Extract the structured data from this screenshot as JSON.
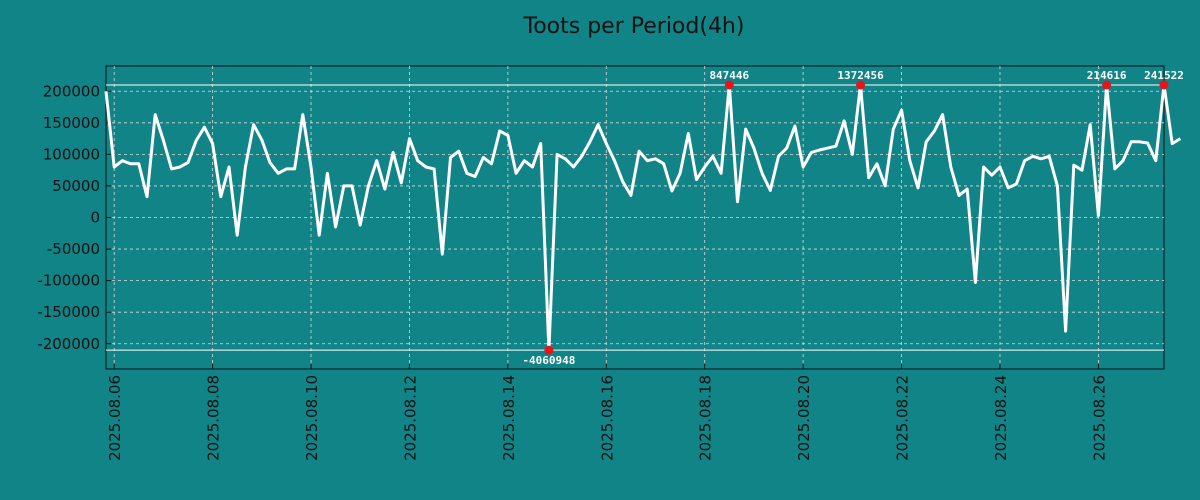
{
  "chart_data": {
    "type": "line",
    "title": "Toots per Period(4h)",
    "xlabel": "",
    "ylabel": "",
    "colors": {
      "background": "#118487",
      "line": "#ffffff",
      "marker": "#e8141a",
      "grid": "#dcdcdc",
      "text": "#111111"
    },
    "x_start": "2025.08.05 20:00",
    "x_step_hours": 4,
    "xlim": [
      0,
      129
    ],
    "ylim": [
      -240000,
      240000
    ],
    "y_ticks": [
      200000,
      150000,
      100000,
      50000,
      0,
      -50000,
      -100000,
      -150000,
      -200000
    ],
    "x_ticks": [
      {
        "label": "2025.08.06",
        "x": 1
      },
      {
        "label": "2025.08.08",
        "x": 13
      },
      {
        "label": "2025.08.10",
        "x": 25
      },
      {
        "label": "2025.08.12",
        "x": 37
      },
      {
        "label": "2025.08.14",
        "x": 49
      },
      {
        "label": "2025.08.16",
        "x": 61
      },
      {
        "label": "2025.08.18",
        "x": 73
      },
      {
        "label": "2025.08.20",
        "x": 85
      },
      {
        "label": "2025.08.22",
        "x": 97
      },
      {
        "label": "2025.08.24",
        "x": 109
      },
      {
        "label": "2025.08.26",
        "x": 121
      }
    ],
    "clip_lines": [
      210000,
      -210000
    ],
    "values": [
      200000,
      80000,
      90000,
      85000,
      85000,
      33000,
      163000,
      122000,
      77000,
      80000,
      87000,
      122000,
      143000,
      117000,
      33000,
      80000,
      -28000,
      80000,
      147000,
      123000,
      87000,
      70000,
      77000,
      77000,
      163000,
      80000,
      -28000,
      70000,
      -15000,
      50000,
      50000,
      -12000,
      50000,
      90000,
      45000,
      103000,
      55000,
      125000,
      90000,
      80000,
      77000,
      -58000,
      95000,
      105000,
      70000,
      65000,
      95000,
      85000,
      137000,
      130000,
      70000,
      90000,
      80000,
      117000,
      -210000,
      100000,
      93000,
      80000,
      97000,
      120000,
      147000,
      117000,
      90000,
      57000,
      35000,
      105000,
      90000,
      93000,
      85000,
      42000,
      70000,
      133000,
      60000,
      80000,
      97000,
      70000,
      210000,
      25000,
      140000,
      110000,
      70000,
      43000,
      97000,
      110000,
      145000,
      80000,
      103000,
      107000,
      110000,
      113000,
      153000,
      100000,
      210000,
      63000,
      85000,
      50000,
      140000,
      170000,
      90000,
      47000,
      120000,
      137000,
      163000,
      80000,
      35000,
      45000,
      -103000,
      80000,
      67000,
      80000,
      47000,
      53000,
      90000,
      97000,
      93000,
      97000,
      50000,
      -180000,
      83000,
      75000,
      147000,
      3000,
      210000,
      77000,
      90000,
      120000,
      120000,
      118000,
      90000,
      210000,
      117000,
      125000
    ],
    "annotations": [
      {
        "label": "-4060948",
        "index": 54
      },
      {
        "label": "847446",
        "index": 76
      },
      {
        "label": "1372456",
        "index": 92
      },
      {
        "label": "214616",
        "index": 122
      },
      {
        "label": "241522",
        "index": 129
      }
    ]
  }
}
